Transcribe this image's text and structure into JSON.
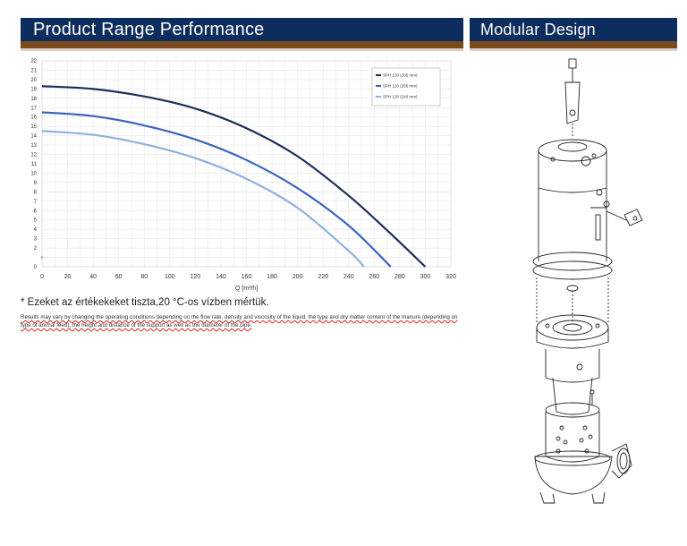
{
  "banners": {
    "left_title": "Product Range Performance",
    "right_title": "Modular Design"
  },
  "colors": {
    "banner_bg": "#0d2d5e",
    "banner_stripe": "#7a4a1c",
    "series_dark": "#1b2e5c",
    "series_mid": "#3a64c0",
    "series_light": "#8fb0e0"
  },
  "chart_data": {
    "type": "line",
    "xlabel": "Q [m³/h]",
    "ylabel": "",
    "xlim": [
      0,
      320
    ],
    "ylim": [
      0,
      22
    ],
    "x_ticks": [
      0,
      20,
      40,
      60,
      80,
      100,
      120,
      140,
      160,
      180,
      200,
      220,
      240,
      260,
      280,
      300,
      320
    ],
    "y_ticks": [
      0,
      2,
      3,
      4,
      5,
      6,
      7,
      8,
      9,
      10,
      11,
      12,
      13,
      14,
      15,
      16,
      17,
      18,
      19,
      20,
      21,
      22
    ],
    "grid": true,
    "legend_position": "top-right",
    "series": [
      {
        "name": "SPH 120 (285 mm)",
        "color": "#1b2e5c",
        "x": [
          0,
          40,
          80,
          120,
          160,
          200,
          240,
          270,
          300
        ],
        "y": [
          19.3,
          19.0,
          18.2,
          16.9,
          14.8,
          11.8,
          7.6,
          3.9,
          0
        ]
      },
      {
        "name": "SPH 120 (265 mm)",
        "color": "#3a64c0",
        "x": [
          0,
          40,
          80,
          120,
          160,
          200,
          240,
          273
        ],
        "y": [
          16.5,
          16.1,
          15.1,
          13.6,
          11.4,
          8.4,
          4.4,
          0
        ]
      },
      {
        "name": "SPH 120 (240 mm)",
        "color": "#8fb0e0",
        "x": [
          0,
          40,
          80,
          120,
          160,
          200,
          240,
          252
        ],
        "y": [
          14.5,
          14.1,
          13.1,
          11.6,
          9.4,
          6.3,
          1.7,
          0
        ]
      }
    ],
    "extra_point": {
      "x": 0,
      "y": 1
    }
  },
  "notes": {
    "measured": "* Ezeket az értékekeket tiszta,20 °C-os vízben mértük.",
    "results": "Results may vary by changing the operating conditions depending on the flow rate, density and viscosity of the liquid, the type and dry matter content of the manure (depending on type of animal feed), the height and distance of the support as well as the diameter of the pipe."
  },
  "figure": {
    "icon": "pump-exploded-view-icon"
  }
}
